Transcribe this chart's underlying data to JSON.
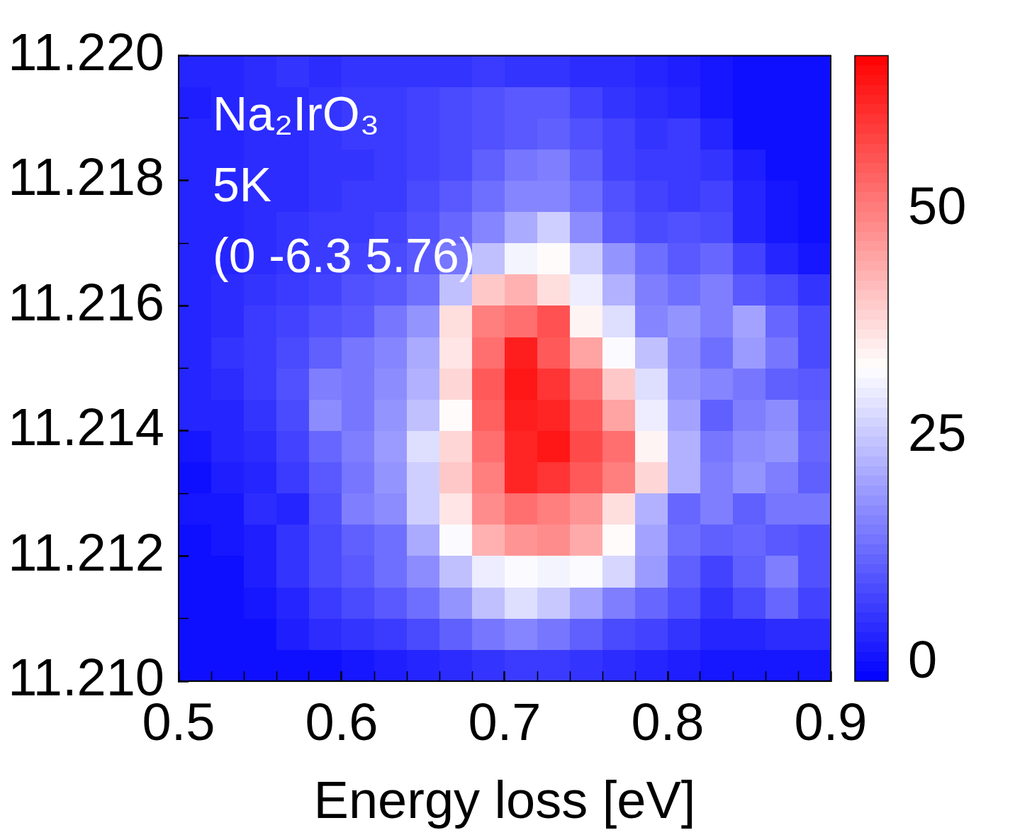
{
  "chart_data": {
    "type": "heatmap",
    "xlabel": "Energy loss [eV]",
    "annotations": [
      "Na₂IrO₃",
      "5K",
      "(0 -6.3 5.76)"
    ],
    "xlim": [
      0.5,
      0.9
    ],
    "ylim": [
      11.21,
      11.22
    ],
    "xticks": [
      0.5,
      {
        "value": 0.52,
        "label": null
      },
      {
        "value": 0.54,
        "label": null
      },
      {
        "value": 0.56,
        "label": null
      },
      {
        "value": 0.58,
        "label": null
      },
      0.6,
      {
        "value": 0.62,
        "label": null
      },
      {
        "value": 0.64,
        "label": null
      },
      {
        "value": 0.66,
        "label": null
      },
      {
        "value": 0.68,
        "label": null
      },
      0.7,
      {
        "value": 0.72,
        "label": null
      },
      {
        "value": 0.74,
        "label": null
      },
      {
        "value": 0.76,
        "label": null
      },
      {
        "value": 0.78,
        "label": null
      },
      0.8,
      {
        "value": 0.82,
        "label": null
      },
      {
        "value": 0.84,
        "label": null
      },
      {
        "value": 0.86,
        "label": null
      },
      {
        "value": 0.88,
        "label": null
      },
      0.9
    ],
    "yticks": [
      {
        "value": 11.21,
        "label": "11.210"
      },
      {
        "value": 11.211,
        "label": null
      },
      11.212,
      {
        "value": 11.213,
        "label": null
      },
      11.214,
      {
        "value": 11.215,
        "label": null
      },
      11.216,
      {
        "value": 11.217,
        "label": null
      },
      11.218,
      {
        "value": 11.219,
        "label": null
      },
      {
        "value": 11.22,
        "label": "11.220"
      }
    ],
    "cells": [
      [
        3,
        3,
        4,
        5,
        4,
        5,
        5,
        5,
        5,
        6,
        5,
        5,
        4,
        4,
        3,
        2,
        1,
        0,
        0,
        0
      ],
      [
        2,
        3,
        4,
        4,
        5,
        6,
        6,
        7,
        8,
        9,
        10,
        10,
        7,
        5,
        4,
        3,
        1,
        0,
        0,
        0
      ],
      [
        3,
        3,
        4,
        4,
        5,
        6,
        6,
        7,
        8,
        9,
        10,
        11,
        9,
        7,
        5,
        6,
        3,
        0,
        0,
        0
      ],
      [
        3,
        3,
        4,
        4,
        5,
        5,
        6,
        7,
        8,
        11,
        14,
        15,
        11,
        7,
        6,
        6,
        5,
        2,
        0,
        0
      ],
      [
        3,
        3,
        4,
        4,
        5,
        6,
        6,
        8,
        10,
        13,
        16,
        16,
        13,
        9,
        7,
        6,
        7,
        3,
        1,
        0
      ],
      [
        3,
        3,
        4,
        5,
        6,
        6,
        7,
        9,
        12,
        16,
        21,
        26,
        17,
        10,
        8,
        9,
        8,
        3,
        1,
        0
      ],
      [
        3,
        3,
        4,
        5,
        6,
        7,
        8,
        10,
        14,
        24,
        31,
        33,
        26,
        18,
        13,
        10,
        12,
        7,
        3,
        1
      ],
      [
        3,
        4,
        5,
        6,
        7,
        9,
        10,
        13,
        24,
        40,
        43,
        37,
        30,
        22,
        15,
        13,
        15,
        10,
        8,
        5
      ],
      [
        3,
        4,
        6,
        7,
        9,
        10,
        14,
        18,
        37,
        50,
        52,
        56,
        34,
        28,
        16,
        18,
        15,
        20,
        12,
        8
      ],
      [
        3,
        5,
        6,
        8,
        11,
        14,
        16,
        21,
        36,
        52,
        63,
        55,
        45,
        32,
        24,
        17,
        13,
        19,
        14,
        8
      ],
      [
        3,
        4,
        6,
        9,
        15,
        14,
        17,
        22,
        38,
        55,
        64,
        60,
        52,
        40,
        28,
        18,
        16,
        14,
        11,
        10
      ],
      [
        3,
        3,
        5,
        8,
        17,
        14,
        18,
        24,
        33,
        54,
        63,
        62,
        55,
        45,
        30,
        20,
        11,
        15,
        17,
        11
      ],
      [
        1,
        3,
        4,
        7,
        12,
        15,
        19,
        28,
        38,
        52,
        62,
        64,
        57,
        52,
        34,
        22,
        14,
        17,
        18,
        12
      ],
      [
        0,
        2,
        3,
        6,
        10,
        14,
        18,
        26,
        40,
        50,
        62,
        60,
        55,
        50,
        38,
        22,
        15,
        18,
        15,
        11
      ],
      [
        1,
        1,
        4,
        3,
        9,
        15,
        17,
        26,
        36,
        48,
        52,
        50,
        47,
        37,
        22,
        12,
        15,
        11,
        14,
        14
      ],
      [
        0,
        1,
        2,
        5,
        8,
        11,
        13,
        21,
        32,
        43,
        47,
        48,
        44,
        33,
        20,
        13,
        11,
        12,
        10,
        9
      ],
      [
        0,
        0,
        2,
        5,
        8,
        10,
        13,
        17,
        24,
        30,
        32,
        31,
        32,
        27,
        19,
        11,
        7,
        11,
        15,
        9
      ],
      [
        0,
        0,
        1,
        3,
        6,
        8,
        10,
        13,
        18,
        24,
        28,
        25,
        20,
        15,
        12,
        9,
        5,
        8,
        12,
        7
      ],
      [
        0,
        0,
        0,
        2,
        4,
        5,
        6,
        8,
        11,
        14,
        16,
        14,
        11,
        8,
        7,
        5,
        3,
        3,
        4,
        4
      ],
      [
        0,
        0,
        0,
        0,
        0,
        1,
        2,
        3,
        4,
        5,
        6,
        6,
        5,
        4,
        3,
        2,
        1,
        1,
        1,
        1
      ]
    ],
    "clim": [
      -2,
      67
    ],
    "cticks": [
      0,
      25,
      50
    ],
    "colors": [
      "#0000ff",
      "#ffffff",
      "#ff0000"
    ]
  }
}
